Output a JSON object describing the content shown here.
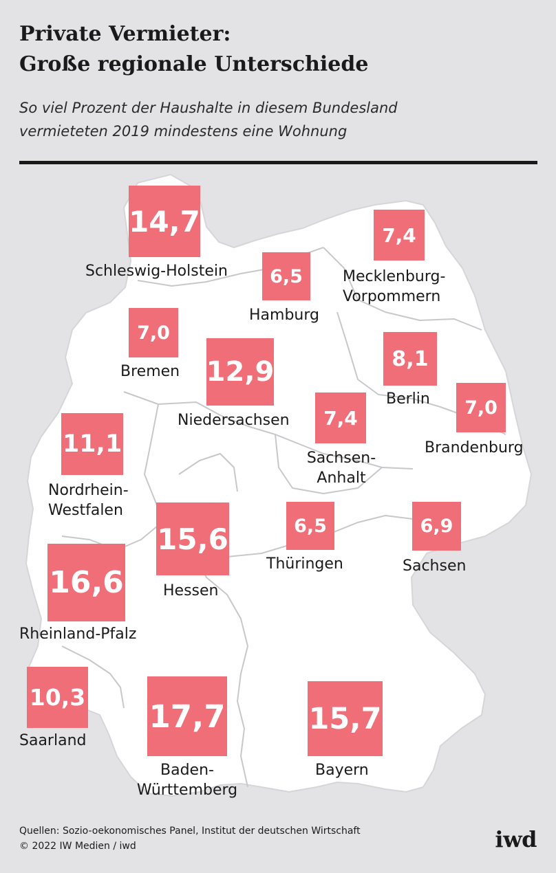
{
  "header": {
    "title_line1": "Private Vermieter:",
    "title_line2": "Große regionale Unterschiede",
    "subtitle_line1": "So viel Prozent der Haushalte in diesem Bundesland",
    "subtitle_line2": "vermieteten 2019 mindestens eine Wohnung"
  },
  "colors": {
    "box": "#f06e78",
    "map_fill": "#ffffff",
    "background": "#e3e3e5",
    "border": "#c8c8cc"
  },
  "regions": [
    {
      "id": "schleswig-holstein",
      "value": "14,7",
      "label_line1": "Schleswig-Holstein",
      "label_line2": ""
    },
    {
      "id": "hamburg",
      "value": "6,5",
      "label_line1": "Hamburg",
      "label_line2": ""
    },
    {
      "id": "mecklenburg-vorpommern",
      "value": "7,4",
      "label_line1": "Mecklenburg-",
      "label_line2": "Vorpommern"
    },
    {
      "id": "bremen",
      "value": "7,0",
      "label_line1": "Bremen",
      "label_line2": ""
    },
    {
      "id": "niedersachsen",
      "value": "12,9",
      "label_line1": "Niedersachsen",
      "label_line2": ""
    },
    {
      "id": "berlin",
      "value": "8,1",
      "label_line1": "Berlin",
      "label_line2": ""
    },
    {
      "id": "sachsen-anhalt",
      "value": "7,4",
      "label_line1": "Sachsen-",
      "label_line2": "Anhalt"
    },
    {
      "id": "brandenburg",
      "value": "7,0",
      "label_line1": "Brandenburg",
      "label_line2": ""
    },
    {
      "id": "nordrhein-westfalen",
      "value": "11,1",
      "label_line1": "Nordrhein-",
      "label_line2": "Westfalen"
    },
    {
      "id": "hessen",
      "value": "15,6",
      "label_line1": "Hessen",
      "label_line2": ""
    },
    {
      "id": "thueringen",
      "value": "6,5",
      "label_line1": "Thüringen",
      "label_line2": ""
    },
    {
      "id": "sachsen",
      "value": "6,9",
      "label_line1": "Sachsen",
      "label_line2": ""
    },
    {
      "id": "rheinland-pfalz",
      "value": "16,6",
      "label_line1": "Rheinland-Pfalz",
      "label_line2": ""
    },
    {
      "id": "saarland",
      "value": "10,3",
      "label_line1": "Saarland",
      "label_line2": ""
    },
    {
      "id": "baden-wuerttemberg",
      "value": "17,7",
      "label_line1": "Baden-",
      "label_line2": "Württemberg"
    },
    {
      "id": "bayern",
      "value": "15,7",
      "label_line1": "Bayern",
      "label_line2": ""
    }
  ],
  "footer": {
    "source_line1": "Quellen: Sozio-oekonomisches Panel, Institut der deutschen Wirtschaft",
    "source_line2": "© 2022 IW Medien / iwd",
    "logo": "iwd"
  }
}
